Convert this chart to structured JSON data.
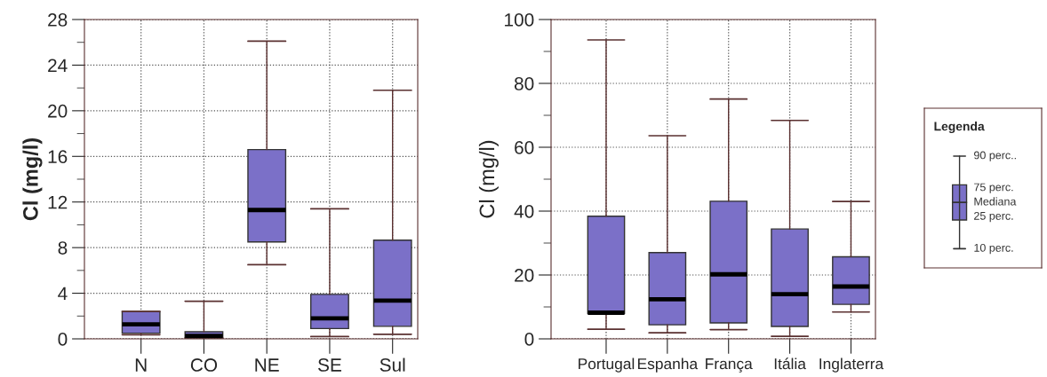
{
  "chart_data": [
    {
      "type": "box",
      "ylabel": "Cl (mg/l)",
      "categories": [
        "N",
        "CO",
        "NE",
        "SE",
        "Sul"
      ],
      "color": "#7b70c8",
      "grid": true,
      "ylim": [
        0,
        28
      ],
      "yticks": [
        0,
        {
          "value": 2,
          "label": null
        },
        4,
        {
          "value": 6,
          "label": null
        },
        8,
        {
          "value": 10,
          "label": null
        },
        12,
        {
          "value": 14,
          "label": null
        },
        16,
        {
          "value": 18,
          "label": null
        },
        20,
        {
          "value": 22,
          "label": null
        },
        24,
        {
          "value": 26,
          "label": null
        },
        28
      ],
      "boxes": [
        {
          "low": 0.36,
          "q1": 0.5,
          "median": 1.27,
          "q3": 2.4,
          "high": 2.4
        },
        {
          "low": 0.1,
          "q1": 0.1,
          "median": 0.25,
          "q3": 0.62,
          "high": 3.3
        },
        {
          "low": 6.5,
          "q1": 8.5,
          "median": 11.3,
          "q3": 16.6,
          "high": 26.1
        },
        {
          "low": 0.2,
          "q1": 0.9,
          "median": 1.8,
          "q3": 3.9,
          "high": 11.4
        },
        {
          "low": 0.4,
          "q1": 1.1,
          "median": 3.35,
          "q3": 8.65,
          "high": 21.8
        }
      ]
    },
    {
      "type": "box",
      "ylabel": "Cl (mg/l)",
      "categories": [
        "Portugal",
        "Espanha",
        "França",
        "Itália",
        "Inglaterra"
      ],
      "color": "#7b70c8",
      "grid": true,
      "ylim": [
        0,
        100
      ],
      "yticks": [
        0,
        {
          "value": 10,
          "label": null
        },
        20,
        {
          "value": 30,
          "label": null
        },
        40,
        {
          "value": 50,
          "label": null
        },
        60,
        {
          "value": 70,
          "label": null
        },
        80,
        {
          "value": 90,
          "label": null
        },
        100
      ],
      "boxes": [
        {
          "low": 3,
          "q1": 8,
          "median": 8.2,
          "q3": 38.4,
          "high": 93.6
        },
        {
          "low": 1.9,
          "q1": 4.4,
          "median": 12.4,
          "q3": 27,
          "high": 63.6
        },
        {
          "low": 2.9,
          "q1": 5,
          "median": 20.2,
          "q3": 43.1,
          "high": 75.1
        },
        {
          "low": 0.8,
          "q1": 3.9,
          "median": 14,
          "q3": 34.4,
          "high": 68.4
        },
        {
          "low": 8.4,
          "q1": 10.8,
          "median": 16.4,
          "q3": 25.7,
          "high": 43
        }
      ]
    },
    {
      "type": "other",
      "title": "Legenda",
      "annotations": [
        "90 perc..",
        "75 perc.",
        "Mediana",
        "25 perc.",
        "10 perc."
      ]
    }
  ]
}
